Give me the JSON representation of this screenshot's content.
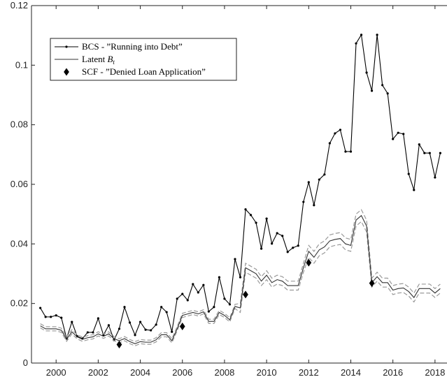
{
  "chart_data": {
    "type": "line",
    "x": [
      1999.25,
      1999.5,
      1999.75,
      2000,
      2000.25,
      2000.5,
      2000.75,
      2001,
      2001.25,
      2001.5,
      2001.75,
      2002,
      2002.25,
      2002.5,
      2002.75,
      2003,
      2003.25,
      2003.5,
      2003.75,
      2004,
      2004.25,
      2004.5,
      2004.75,
      2005,
      2005.25,
      2005.5,
      2005.75,
      2006,
      2006.25,
      2006.5,
      2006.75,
      2007,
      2007.25,
      2007.5,
      2007.75,
      2008,
      2008.25,
      2008.5,
      2008.75,
      2009,
      2009.25,
      2009.5,
      2009.75,
      2010,
      2010.25,
      2010.5,
      2010.75,
      2011,
      2011.25,
      2011.5,
      2011.75,
      2012,
      2012.25,
      2012.5,
      2012.75,
      2013,
      2013.25,
      2013.5,
      2013.75,
      2014,
      2014.25,
      2014.5,
      2014.75,
      2015,
      2015.25,
      2015.5,
      2015.75,
      2016,
      2016.25,
      2016.5,
      2016.75,
      2017,
      2017.25,
      2017.5,
      2017.75,
      2018,
      2018.25
    ],
    "series": [
      {
        "name": "BCS - ”Running into Debt”",
        "color": "#000000",
        "marker": "dot",
        "line": true,
        "values": [
          0.0185,
          0.0155,
          0.0155,
          0.016,
          0.0152,
          0.0082,
          0.0138,
          0.009,
          0.0082,
          0.0103,
          0.0103,
          0.015,
          0.0094,
          0.0127,
          0.0077,
          0.0115,
          0.0188,
          0.0136,
          0.0094,
          0.0138,
          0.0112,
          0.011,
          0.0129,
          0.0188,
          0.0171,
          0.0105,
          0.0216,
          0.0232,
          0.0211,
          0.0265,
          0.0237,
          0.0262,
          0.0173,
          0.0188,
          0.0288,
          0.0216,
          0.0197,
          0.0349,
          0.0288,
          0.0516,
          0.0497,
          0.0471,
          0.0384,
          0.0485,
          0.0401,
          0.0436,
          0.0427,
          0.0373,
          0.0387,
          0.0394,
          0.0541,
          0.0607,
          0.053,
          0.0616,
          0.0633,
          0.0738,
          0.0771,
          0.0783,
          0.071,
          0.071,
          0.1073,
          0.1102,
          0.0975,
          0.0914,
          0.1102,
          0.0933,
          0.0905,
          0.0752,
          0.0773,
          0.0769,
          0.0635,
          0.0581,
          0.0734,
          0.0705,
          0.0705,
          0.0623,
          0.0705
        ]
      },
      {
        "name": "Latent B_t",
        "color": "#333333",
        "marker": null,
        "line": true,
        "values": [
          0.0125,
          0.0115,
          0.0115,
          0.0115,
          0.011,
          0.008,
          0.0105,
          0.0088,
          0.008,
          0.0085,
          0.0088,
          0.0098,
          0.009,
          0.0098,
          0.0082,
          0.0075,
          0.0082,
          0.0072,
          0.0065,
          0.0072,
          0.007,
          0.007,
          0.0078,
          0.0095,
          0.0095,
          0.0075,
          0.0115,
          0.016,
          0.0165,
          0.017,
          0.0165,
          0.0172,
          0.014,
          0.014,
          0.017,
          0.016,
          0.0145,
          0.019,
          0.0185,
          0.032,
          0.031,
          0.03,
          0.0275,
          0.0295,
          0.027,
          0.028,
          0.0275,
          0.026,
          0.026,
          0.026,
          0.032,
          0.0375,
          0.0355,
          0.038,
          0.039,
          0.041,
          0.0415,
          0.0418,
          0.04,
          0.0395,
          0.048,
          0.0495,
          0.046,
          0.027,
          0.029,
          0.027,
          0.027,
          0.0245,
          0.025,
          0.0252,
          0.024,
          0.022,
          0.025,
          0.025,
          0.025,
          0.0235,
          0.025
        ],
        "band_color": "#999999",
        "upper": [
          0.0132,
          0.0122,
          0.0122,
          0.0122,
          0.0117,
          0.0087,
          0.0112,
          0.0095,
          0.0087,
          0.0092,
          0.0095,
          0.0105,
          0.0097,
          0.0105,
          0.0089,
          0.0082,
          0.0089,
          0.0079,
          0.0072,
          0.0079,
          0.0077,
          0.0077,
          0.0085,
          0.0102,
          0.0102,
          0.0082,
          0.0122,
          0.0167,
          0.0172,
          0.0177,
          0.0172,
          0.0179,
          0.0147,
          0.0147,
          0.0177,
          0.0167,
          0.0152,
          0.0197,
          0.02,
          0.0335,
          0.0325,
          0.0315,
          0.029,
          0.031,
          0.0285,
          0.0295,
          0.029,
          0.0275,
          0.0275,
          0.0275,
          0.0335,
          0.0395,
          0.0375,
          0.04,
          0.041,
          0.043,
          0.0435,
          0.0438,
          0.042,
          0.0415,
          0.05,
          0.0515,
          0.048,
          0.0285,
          0.0305,
          0.0285,
          0.0285,
          0.026,
          0.0265,
          0.0267,
          0.0255,
          0.0235,
          0.0265,
          0.0265,
          0.0265,
          0.025,
          0.0265
        ],
        "lower": [
          0.0118,
          0.0108,
          0.0108,
          0.0108,
          0.0103,
          0.0073,
          0.0098,
          0.0081,
          0.0073,
          0.0078,
          0.0081,
          0.0091,
          0.0083,
          0.0091,
          0.0075,
          0.0068,
          0.0075,
          0.0065,
          0.0058,
          0.0065,
          0.0063,
          0.0063,
          0.0071,
          0.0088,
          0.0088,
          0.0068,
          0.0108,
          0.0153,
          0.0158,
          0.0163,
          0.0158,
          0.0165,
          0.0133,
          0.0133,
          0.0163,
          0.0153,
          0.0138,
          0.0183,
          0.017,
          0.0305,
          0.0295,
          0.0285,
          0.026,
          0.028,
          0.0255,
          0.0265,
          0.026,
          0.0245,
          0.0245,
          0.0245,
          0.0305,
          0.0355,
          0.0335,
          0.036,
          0.037,
          0.039,
          0.0395,
          0.0398,
          0.038,
          0.0375,
          0.046,
          0.0475,
          0.044,
          0.0255,
          0.0275,
          0.0255,
          0.0255,
          0.023,
          0.0235,
          0.0237,
          0.0225,
          0.0205,
          0.0235,
          0.0235,
          0.0235,
          0.022,
          0.0235
        ]
      },
      {
        "name": "SCF - ”Denied Loan Application”",
        "color": "#000000",
        "marker": "diamond",
        "line": false,
        "x": [
          2003,
          2006,
          2009,
          2012,
          2015
        ],
        "values": [
          0.0062,
          0.0123,
          0.023,
          0.0337,
          0.0268
        ]
      }
    ],
    "xlim": [
      1998.83,
      2018.57
    ],
    "ylim": [
      0,
      0.12
    ],
    "xticks": [
      2000,
      2002,
      2004,
      2006,
      2008,
      2010,
      2012,
      2014,
      2016,
      2018
    ],
    "yticks": [
      0,
      0.02,
      0.04,
      0.06,
      0.08,
      0.1,
      0.12
    ],
    "legend": "upper left"
  }
}
